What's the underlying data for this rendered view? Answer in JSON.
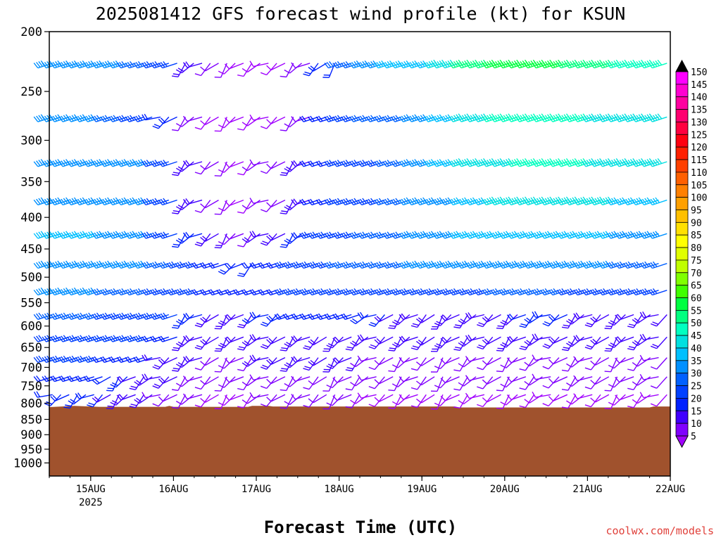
{
  "chart_data": {
    "type": "wind-barb-profile",
    "title": "2025081412 GFS forecast wind profile (kt) for KSUN",
    "xlabel": "Forecast Time (UTC)",
    "ylabel": "",
    "y_axis": {
      "scale": "log",
      "reversed": true,
      "range": [
        200,
        1050
      ],
      "ticks": [
        200,
        250,
        300,
        350,
        400,
        450,
        500,
        550,
        600,
        650,
        700,
        750,
        800,
        850,
        900,
        950,
        1000
      ]
    },
    "x_axis": {
      "ticks": [
        {
          "label": "15AUG",
          "sublabel": "2025",
          "day": 1
        },
        {
          "label": "16AUG",
          "sublabel": "",
          "day": 2
        },
        {
          "label": "17AUG",
          "sublabel": "",
          "day": 3
        },
        {
          "label": "18AUG",
          "sublabel": "",
          "day": 4
        },
        {
          "label": "19AUG",
          "sublabel": "",
          "day": 5
        },
        {
          "label": "20AUG",
          "sublabel": "",
          "day": 6
        },
        {
          "label": "21AUG",
          "sublabel": "",
          "day": 7
        },
        {
          "label": "22AUG",
          "sublabel": "",
          "day": 8
        }
      ],
      "range_days": [
        0.5,
        8.0
      ],
      "interval_hours": 3
    },
    "levels": [
      225,
      275,
      325,
      375,
      425,
      475,
      525,
      575,
      625,
      675,
      725,
      775,
      825
    ],
    "terrain": {
      "color": "#a0522d",
      "surface_pressure_profile": [
        {
          "day": 0.5,
          "p": 812
        },
        {
          "day": 0.8,
          "p": 808
        },
        {
          "day": 1.1,
          "p": 811
        },
        {
          "day": 1.9,
          "p": 811
        },
        {
          "day": 1.95,
          "p": 808
        },
        {
          "day": 2.0,
          "p": 811
        },
        {
          "day": 2.9,
          "p": 811
        },
        {
          "day": 2.95,
          "p": 808
        },
        {
          "day": 3.15,
          "p": 808
        },
        {
          "day": 3.2,
          "p": 810
        },
        {
          "day": 5.4,
          "p": 810
        },
        {
          "day": 5.45,
          "p": 813
        },
        {
          "day": 7.75,
          "p": 813
        },
        {
          "day": 7.8,
          "p": 810
        },
        {
          "day": 8.0,
          "p": 810
        }
      ]
    },
    "wind_speed_samples_kt": {
      "225": [
        38,
        38,
        35,
        32,
        25,
        18,
        12,
        8,
        6,
        10,
        20,
        30,
        38,
        40,
        42,
        48,
        55,
        60,
        62,
        60,
        58,
        55,
        52,
        50
      ],
      "275": [
        35,
        35,
        32,
        28,
        20,
        12,
        8,
        6,
        8,
        12,
        22,
        28,
        30,
        32,
        35,
        40,
        45,
        50,
        52,
        52,
        50,
        48,
        46,
        45
      ],
      "325": [
        35,
        38,
        38,
        35,
        28,
        15,
        10,
        8,
        10,
        15,
        22,
        25,
        28,
        30,
        35,
        40,
        45,
        48,
        50,
        52,
        50,
        48,
        46,
        45
      ],
      "375": [
        35,
        38,
        38,
        35,
        28,
        18,
        12,
        8,
        12,
        18,
        22,
        25,
        28,
        30,
        35,
        38,
        42,
        45,
        48,
        48,
        46,
        45,
        42,
        40
      ],
      "425": [
        40,
        40,
        38,
        35,
        28,
        20,
        15,
        12,
        15,
        20,
        25,
        28,
        30,
        32,
        35,
        38,
        40,
        42,
        42,
        42,
        40,
        40,
        38,
        38
      ],
      "475": [
        35,
        38,
        38,
        35,
        30,
        25,
        22,
        20,
        22,
        25,
        28,
        30,
        32,
        34,
        35,
        35,
        36,
        38,
        38,
        38,
        36,
        35,
        34,
        32
      ],
      "525": [
        35,
        35,
        32,
        30,
        28,
        25,
        22,
        22,
        24,
        25,
        26,
        28,
        28,
        28,
        28,
        28,
        28,
        30,
        30,
        30,
        28,
        28,
        28,
        28
      ],
      "575": [
        30,
        30,
        28,
        28,
        25,
        20,
        18,
        18,
        20,
        22,
        22,
        22,
        20,
        18,
        18,
        18,
        18,
        18,
        20,
        20,
        18,
        18,
        18,
        18
      ],
      "625": [
        28,
        28,
        25,
        25,
        22,
        18,
        15,
        15,
        18,
        18,
        18,
        18,
        15,
        15,
        15,
        15,
        15,
        15,
        15,
        15,
        15,
        15,
        15,
        15
      ],
      "675": [
        25,
        25,
        22,
        22,
        18,
        15,
        12,
        12,
        15,
        15,
        15,
        15,
        12,
        12,
        12,
        12,
        12,
        12,
        12,
        12,
        12,
        12,
        12,
        12
      ],
      "725": [
        22,
        22,
        20,
        18,
        15,
        12,
        10,
        10,
        12,
        12,
        12,
        12,
        10,
        10,
        10,
        10,
        10,
        10,
        10,
        10,
        10,
        10,
        10,
        10
      ],
      "775": [
        20,
        20,
        18,
        15,
        12,
        10,
        8,
        8,
        10,
        10,
        10,
        10,
        8,
        8,
        8,
        8,
        8,
        8,
        8,
        8,
        8,
        8,
        8,
        8
      ],
      "825": [
        15,
        15,
        12,
        12,
        10,
        8,
        6,
        6,
        8,
        8,
        8,
        8,
        6,
        6,
        6,
        6,
        6,
        6,
        6,
        6,
        6,
        6,
        6,
        6
      ]
    },
    "colorbar": {
      "ticks": [
        150,
        145,
        140,
        135,
        130,
        125,
        120,
        115,
        110,
        105,
        100,
        95,
        90,
        85,
        80,
        75,
        70,
        65,
        60,
        55,
        50,
        45,
        40,
        35,
        30,
        25,
        20,
        15,
        10,
        5
      ],
      "colors": [
        "#ff00ff",
        "#ff00d0",
        "#ff00a0",
        "#ff0070",
        "#ff0040",
        "#ff0010",
        "#ff2000",
        "#ff4000",
        "#ff6000",
        "#ff8000",
        "#ffa000",
        "#ffc000",
        "#ffe000",
        "#ffff00",
        "#e0ff00",
        "#c0ff00",
        "#80ff00",
        "#40ff00",
        "#00ff40",
        "#00ff80",
        "#00ffc0",
        "#00e0e0",
        "#00c0ff",
        "#0090ff",
        "#0060ff",
        "#0040ff",
        "#0020ff",
        "#4000ff",
        "#8000ff",
        "#a000ff"
      ]
    },
    "grid": false
  },
  "credit": "coolwx.com/models"
}
